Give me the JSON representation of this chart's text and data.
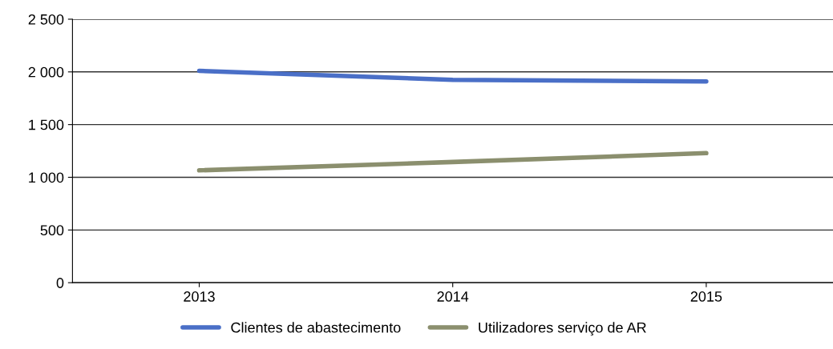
{
  "chart_data": {
    "type": "line",
    "categories": [
      "2013",
      "2014",
      "2015"
    ],
    "series": [
      {
        "name": "Clientes de abastecimento",
        "color": "#4a6fc7",
        "values": [
          2010,
          1925,
          1910
        ]
      },
      {
        "name": "Utilizadores serviço de AR",
        "color": "#8b8f6e",
        "values": [
          1066,
          1145,
          1229
        ]
      }
    ],
    "ylim": [
      0,
      2500
    ],
    "yticks": [
      {
        "value": 0,
        "label": "0"
      },
      {
        "value": 500,
        "label": "500"
      },
      {
        "value": 1000,
        "label": "1 000"
      },
      {
        "value": 1500,
        "label": "1 500"
      },
      {
        "value": 2000,
        "label": "2 000"
      },
      {
        "value": 2500,
        "label": "2 500"
      }
    ],
    "grid": "y",
    "legend": "bottom",
    "marker": "none",
    "line_style": "solid"
  }
}
